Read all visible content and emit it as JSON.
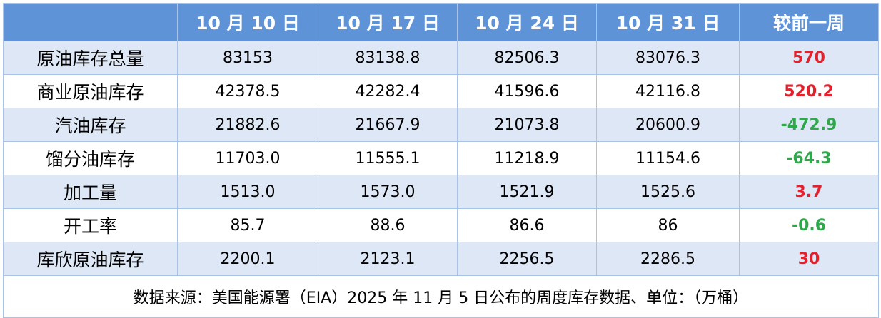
{
  "table": {
    "header": [
      "",
      "10 月 10 日",
      "10 月 17 日",
      "10 月 24 日",
      "10 月 31 日",
      "较前一周"
    ],
    "rows": [
      [
        "原油库存总量",
        "83153",
        "83138.8",
        "82506.3",
        "83076.3",
        "570"
      ],
      [
        "商业原油库存",
        "42378.5",
        "42282.4",
        "41596.6",
        "42116.8",
        "520.2"
      ],
      [
        "汽油库存",
        "21882.6",
        "21667.9",
        "21073.8",
        "20600.9",
        "-472.9"
      ],
      [
        "馏分油库存",
        "11703.0",
        "11555.1",
        "11218.9",
        "11154.6",
        "-64.3"
      ],
      [
        "加工量",
        "1513.0",
        "1573.0",
        "1521.9",
        "1525.6",
        "3.7"
      ],
      [
        "开工率",
        "85.7",
        "88.6",
        "86.6",
        "86",
        "-0.6"
      ],
      [
        "库欣原油库存",
        "2200.1",
        "2123.1",
        "2256.5",
        "2286.5",
        "30"
      ]
    ],
    "note": "数据来源：美国能源署（EIA）2025 年 11 月 5 日公布的周度库存数据、单位：（万桶）",
    "change_colors": {
      "up": "#e3202b",
      "down": "#2fa84b"
    }
  }
}
